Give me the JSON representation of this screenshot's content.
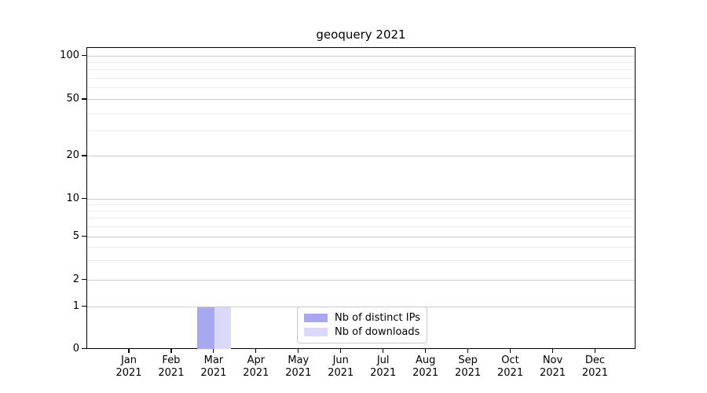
{
  "chart_data": {
    "type": "bar",
    "title": "geoquery 2021",
    "categories": [
      "Jan 2021",
      "Feb 2021",
      "Mar 2021",
      "Apr 2021",
      "May 2021",
      "Jun 2021",
      "Jul 2021",
      "Aug 2021",
      "Sep 2021",
      "Oct 2021",
      "Nov 2021",
      "Dec 2021"
    ],
    "series": [
      {
        "name": "Nb of distinct IPs",
        "color": "#a8a8f0",
        "values": [
          0,
          0,
          1,
          0,
          0,
          0,
          0,
          0,
          0,
          0,
          0,
          0
        ]
      },
      {
        "name": "Nb of downloads",
        "color": "#dadaf8",
        "values": [
          0,
          0,
          1,
          0,
          0,
          0,
          0,
          0,
          0,
          0,
          0,
          0
        ]
      }
    ],
    "xlabel": "",
    "ylabel": "",
    "yscale": "symlog",
    "y_ticks": [
      0,
      1,
      2,
      5,
      10,
      20,
      50,
      100
    ],
    "y_minor_ticks": [
      3,
      4,
      6,
      7,
      8,
      9,
      30,
      40,
      60,
      70,
      80,
      90
    ],
    "ylim": [
      0,
      114
    ],
    "grid": "horizontal",
    "legend_position": "inside-bottom-center"
  },
  "colors": {
    "spine": "#000000",
    "major_grid": "#cccccc",
    "minor_grid": "#ebebeb",
    "legend_border": "#c9c9c9",
    "text": "#000000",
    "background": "#ffffff"
  }
}
